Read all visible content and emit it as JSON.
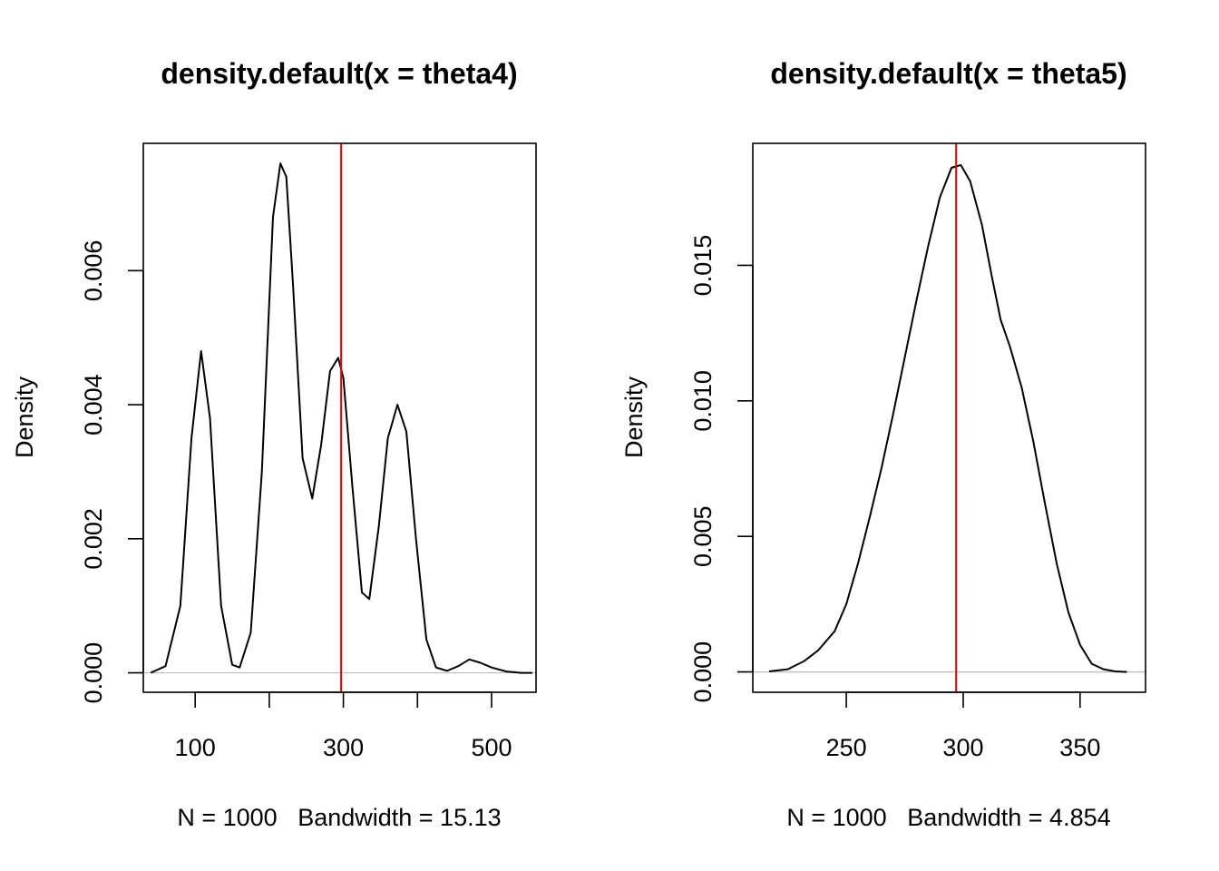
{
  "colors": {
    "curve": "#000000",
    "marker": "#e00000",
    "baseline": "#bebebe",
    "frame": "#000000"
  },
  "chart_data": [
    {
      "type": "line",
      "title": "density.default(x = theta4)",
      "xlabel": "N = 1000   Bandwidth = 15.13",
      "ylabel": "Density",
      "xlim": [
        30,
        560
      ],
      "ylim": [
        -0.00029,
        0.0079
      ],
      "xticks": [
        100,
        200,
        300,
        400,
        500
      ],
      "xtick_labels": [
        "100",
        "",
        "300",
        "",
        "500"
      ],
      "yticks": [
        0.0,
        0.002,
        0.004,
        0.006
      ],
      "ytick_labels": [
        "0.000",
        "0.002",
        "0.004",
        "0.006"
      ],
      "vline": 297,
      "series": [
        {
          "x": [
            40,
            60,
            80,
            95,
            108,
            120,
            135,
            150,
            160,
            175,
            190,
            205,
            215,
            223,
            232,
            245,
            258,
            270,
            282,
            293,
            300,
            312,
            325,
            335,
            348,
            360,
            373,
            385,
            398,
            412,
            425,
            440,
            455,
            470,
            485,
            500,
            520,
            540,
            555
          ],
          "y": [
            0.0,
            0.0001,
            0.001,
            0.0035,
            0.0048,
            0.0038,
            0.001,
            0.00012,
            8e-05,
            0.0006,
            0.003,
            0.0068,
            0.0076,
            0.0074,
            0.0058,
            0.0032,
            0.0026,
            0.0034,
            0.0045,
            0.0047,
            0.0044,
            0.0028,
            0.0012,
            0.0011,
            0.0022,
            0.0035,
            0.004,
            0.0036,
            0.002,
            0.0005,
            8e-05,
            3e-05,
            0.0001,
            0.0002,
            0.00015,
            8e-05,
            2e-05,
            0.0,
            0.0
          ]
        }
      ]
    },
    {
      "type": "line",
      "title": "density.default(x = theta5)",
      "xlabel": "N = 1000   Bandwidth = 4.854",
      "ylabel": "Density",
      "xlim": [
        210,
        378
      ],
      "ylim": [
        -0.00075,
        0.0195
      ],
      "xticks": [
        250,
        300,
        350
      ],
      "xtick_labels": [
        "250",
        "300",
        "350"
      ],
      "yticks": [
        0.0,
        0.005,
        0.01,
        0.015
      ],
      "ytick_labels": [
        "0.000",
        "0.005",
        "0.010",
        "0.015"
      ],
      "vline": 297,
      "series": [
        {
          "x": [
            217,
            225,
            232,
            238,
            245,
            250,
            255,
            260,
            265,
            270,
            275,
            280,
            285,
            290,
            295,
            299,
            303,
            308,
            312,
            316,
            320,
            325,
            330,
            335,
            340,
            345,
            350,
            355,
            360,
            365,
            370
          ],
          "y": [
            2e-05,
            0.0001,
            0.0004,
            0.0008,
            0.0015,
            0.0025,
            0.004,
            0.0057,
            0.0075,
            0.0095,
            0.0116,
            0.0137,
            0.0157,
            0.0175,
            0.0186,
            0.0187,
            0.0181,
            0.0165,
            0.0147,
            0.013,
            0.012,
            0.0105,
            0.0085,
            0.0062,
            0.004,
            0.0022,
            0.001,
            0.0003,
            0.0001,
            2e-05,
            0.0
          ]
        }
      ]
    }
  ]
}
